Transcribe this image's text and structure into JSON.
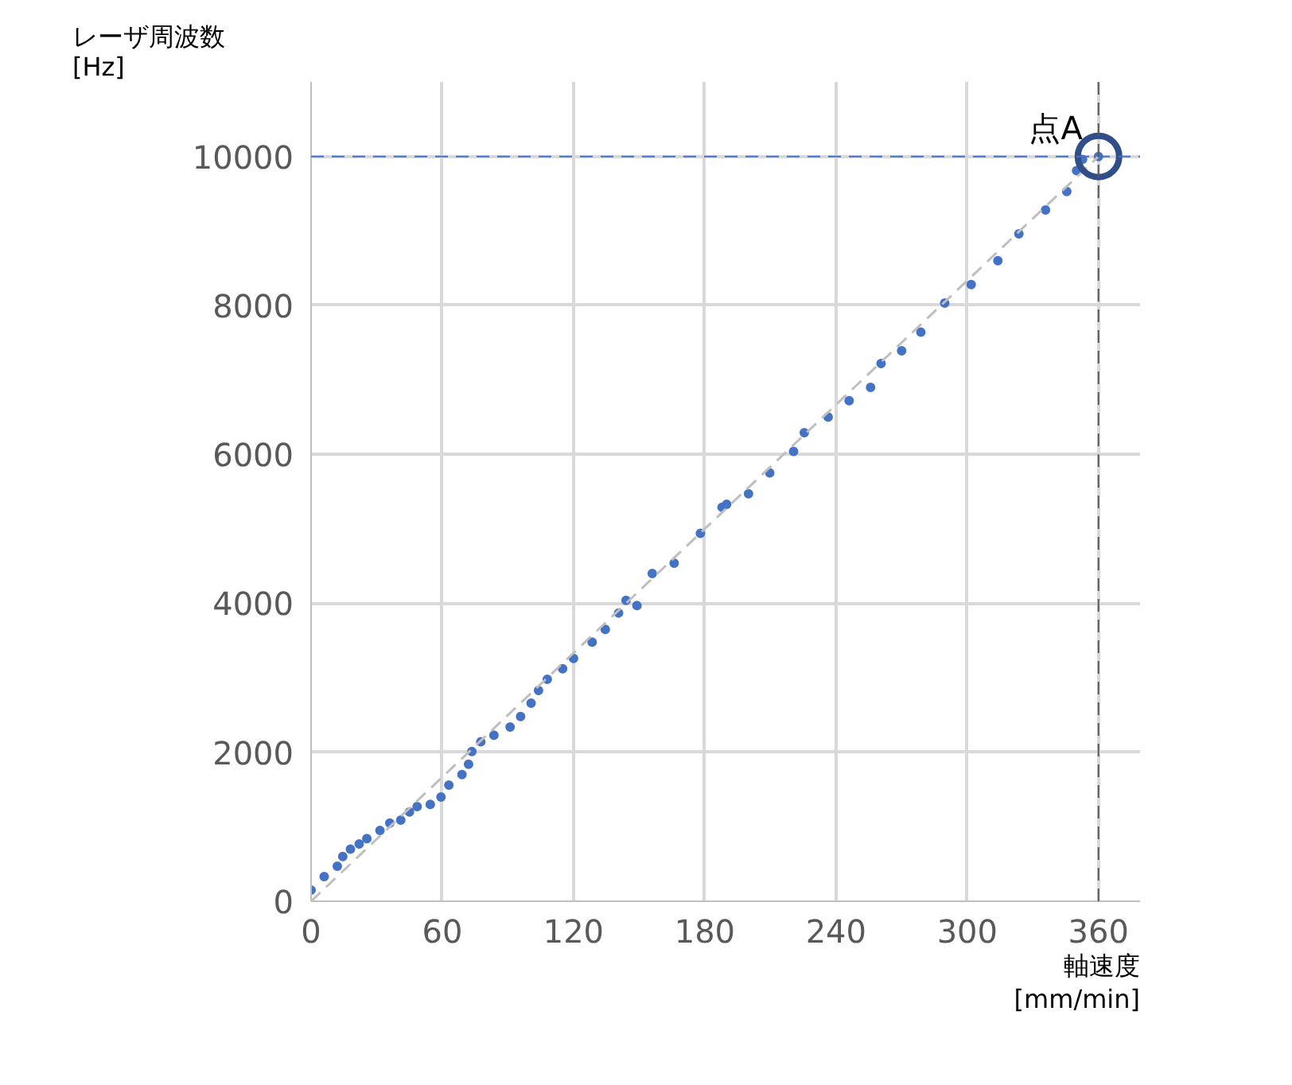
{
  "chart_data": {
    "type": "scatter",
    "xlabel": "軸速度\n[mm/min]",
    "ylabel": "レーザ周波数\n[Hz]",
    "xlim": [
      0,
      379
    ],
    "ylim": [
      0,
      11000
    ],
    "xticks": [
      0,
      60,
      120,
      180,
      240,
      300,
      360
    ],
    "yticks": [
      0,
      2000,
      4000,
      6000,
      8000,
      10000
    ],
    "grid": true,
    "marker": "circle",
    "series": [
      {
        "type": "scatter",
        "color": "#4472c4",
        "x": [
          0,
          6,
          12,
          14.5,
          18,
          22,
          25.5,
          31.5,
          36,
          41,
          45,
          48.5,
          54.5,
          59.4,
          63,
          69,
          72,
          73.5,
          77.6,
          83.6,
          91,
          95.8,
          100.6,
          104,
          108,
          115,
          120,
          128.5,
          134.5,
          140.6,
          144,
          149,
          156,
          166,
          178,
          187.9,
          190,
          200,
          209.7,
          220.6,
          225.5,
          236.4,
          246,
          255.8,
          260.6,
          270,
          278.8,
          289.7,
          301.8,
          314,
          323.6,
          335.8,
          345.5,
          350,
          352.7,
          360
        ],
        "values": [
          150,
          330,
          470,
          600,
          700,
          770,
          840,
          950,
          1050,
          1090,
          1200,
          1270,
          1300,
          1400,
          1560,
          1700,
          1840,
          2010,
          2140,
          2230,
          2340,
          2480,
          2660,
          2830,
          2980,
          3120,
          3260,
          3480,
          3650,
          3870,
          4040,
          3970,
          4400,
          4540,
          4940,
          5290,
          5330,
          5470,
          5750,
          6040,
          6290,
          6500,
          6720,
          6900,
          7220,
          7390,
          7640,
          8030,
          8280,
          8600,
          8960,
          9280,
          9530,
          9810,
          9960,
          10000
        ]
      },
      {
        "type": "line",
        "color": "#bfbfbf",
        "line_style": "dashed",
        "x": [
          0,
          360
        ],
        "values": [
          0,
          10000
        ]
      }
    ],
    "ref_lines": [
      {
        "axis": "y",
        "value": 10000,
        "color": "#4472c4",
        "line_style": "dashed"
      },
      {
        "axis": "x",
        "value": 360,
        "color": "#595959",
        "line_style": "dashed"
      }
    ],
    "annotations": [
      {
        "text": "点A",
        "x": 360,
        "y": 10000
      }
    ]
  }
}
